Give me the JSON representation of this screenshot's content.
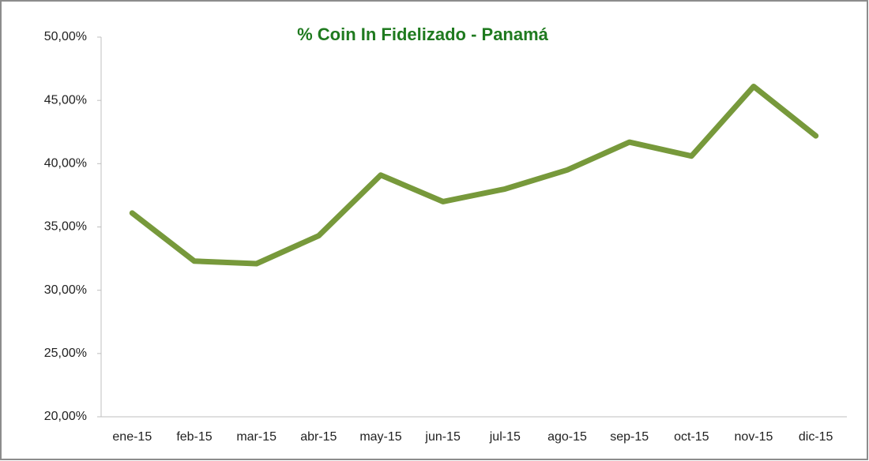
{
  "chart_data": {
    "type": "line",
    "title": "% Coin In Fidelizado - Panamá",
    "categories": [
      "ene-15",
      "feb-15",
      "mar-15",
      "abr-15",
      "may-15",
      "jun-15",
      "jul-15",
      "ago-15",
      "sep-15",
      "oct-15",
      "nov-15",
      "dic-15"
    ],
    "series": [
      {
        "color": "#77993b",
        "values": [
          36.1,
          32.3,
          32.1,
          34.3,
          39.1,
          37.0,
          38.0,
          39.5,
          41.7,
          40.6,
          46.1,
          42.2
        ]
      }
    ],
    "ylim": [
      20,
      50
    ],
    "yticks": [
      {
        "value": 20,
        "label": "20,00%"
      },
      {
        "value": 25,
        "label": "25,00%"
      },
      {
        "value": 30,
        "label": "30,00%"
      },
      {
        "value": 35,
        "label": "35,00%"
      },
      {
        "value": 40,
        "label": "40,00%"
      },
      {
        "value": 45,
        "label": "45,00%"
      },
      {
        "value": 50,
        "label": "50,00%"
      }
    ],
    "grid": false
  }
}
